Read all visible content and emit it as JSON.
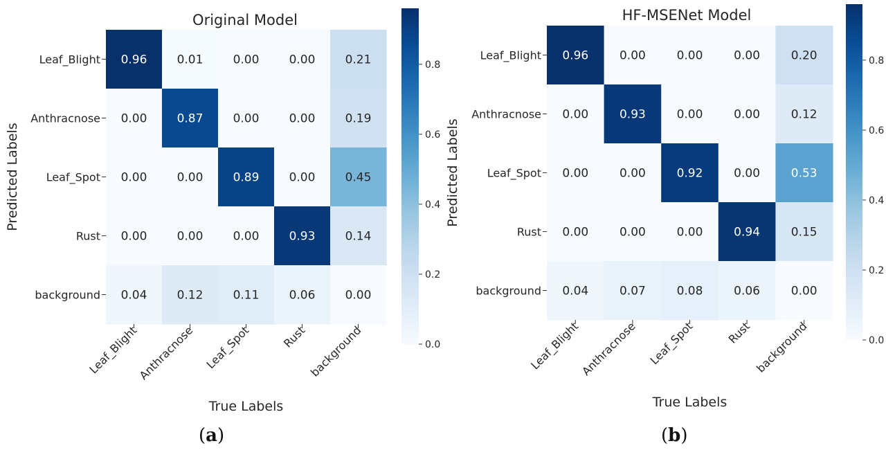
{
  "chart_data": [
    {
      "type": "heatmap",
      "title": "Original Model",
      "xlabel": "True Labels",
      "ylabel": "Predicted Labels",
      "x_categories": [
        "Leaf_Blight",
        "Anthracnose",
        "Leaf_Spot",
        "Rust",
        "background"
      ],
      "y_categories": [
        "Leaf_Blight",
        "Anthracnose",
        "Leaf_Spot",
        "Rust",
        "background"
      ],
      "values": [
        [
          0.96,
          0.01,
          0.0,
          0.0,
          0.21
        ],
        [
          0.0,
          0.87,
          0.0,
          0.0,
          0.19
        ],
        [
          0.0,
          0.0,
          0.89,
          0.0,
          0.45
        ],
        [
          0.0,
          0.0,
          0.0,
          0.93,
          0.14
        ],
        [
          0.04,
          0.12,
          0.11,
          0.06,
          0.0
        ]
      ],
      "colorbar": {
        "min": 0.0,
        "max": 0.96,
        "ticks": [
          0.0,
          0.2,
          0.4,
          0.6,
          0.8
        ],
        "cmap": "Blues"
      },
      "caption": {
        "open": "(",
        "letter": "a",
        "close": ")"
      }
    },
    {
      "type": "heatmap",
      "title": "HF-MSENet Model",
      "xlabel": "True Labels",
      "ylabel": "Predicted Labels",
      "x_categories": [
        "Leaf_Blight",
        "Anthracnose",
        "Leaf_Spot",
        "Rust",
        "background"
      ],
      "y_categories": [
        "Leaf_Blight",
        "Anthracnose",
        "Leaf_Spot",
        "Rust",
        "background"
      ],
      "values": [
        [
          0.96,
          0.0,
          0.0,
          0.0,
          0.2
        ],
        [
          0.0,
          0.93,
          0.0,
          0.0,
          0.12
        ],
        [
          0.0,
          0.0,
          0.92,
          0.0,
          0.53
        ],
        [
          0.0,
          0.0,
          0.0,
          0.94,
          0.15
        ],
        [
          0.04,
          0.07,
          0.08,
          0.06,
          0.0
        ]
      ],
      "colorbar": {
        "min": 0.0,
        "max": 0.96,
        "ticks": [
          0.0,
          0.2,
          0.4,
          0.6,
          0.8
        ],
        "cmap": "Blues"
      },
      "caption": {
        "open": "(",
        "letter": "b",
        "close": ")"
      }
    }
  ]
}
